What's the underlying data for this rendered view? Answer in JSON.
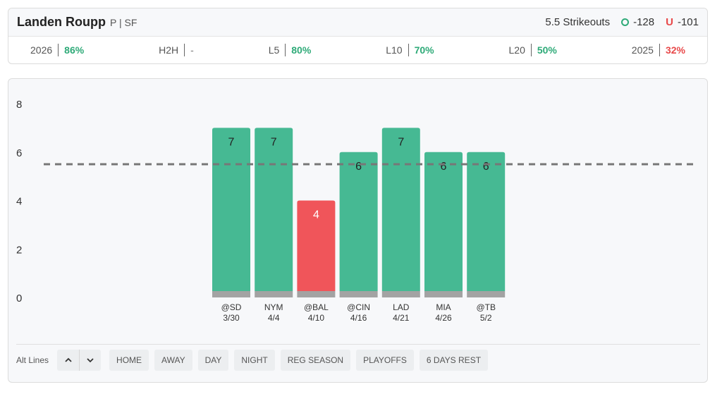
{
  "header": {
    "player_name": "Landen Roupp",
    "player_meta": "P | SF",
    "line_label": "5.5 Strikeouts",
    "over_odds": "-128",
    "under_mark": "U",
    "under_odds": "-101"
  },
  "stats": [
    {
      "label": "2026",
      "value": "86%",
      "tone": "good"
    },
    {
      "label": "H2H",
      "value": "-",
      "tone": "neutral"
    },
    {
      "label": "L5",
      "value": "80%",
      "tone": "good"
    },
    {
      "label": "L10",
      "value": "70%",
      "tone": "good"
    },
    {
      "label": "L20",
      "value": "50%",
      "tone": "good"
    },
    {
      "label": "2025",
      "value": "32%",
      "tone": "bad"
    }
  ],
  "colors": {
    "over": "#46b993",
    "under": "#f0555a",
    "base": "#a3a3a3",
    "line": "#777777"
  },
  "chart_data": {
    "type": "bar",
    "categories": [
      "@SD",
      "NYM",
      "@BAL",
      "@CIN",
      "LAD",
      "MIA",
      "@TB"
    ],
    "dates": [
      "3/30",
      "4/4",
      "4/10",
      "4/16",
      "4/21",
      "4/26",
      "5/2"
    ],
    "values": [
      7,
      7,
      4,
      6,
      7,
      6,
      6
    ],
    "line": 5.5,
    "ylim": [
      0,
      8
    ],
    "yticks": [
      0,
      2,
      4,
      6,
      8
    ],
    "title": "",
    "xlabel": "",
    "ylabel": ""
  },
  "filters": {
    "alt_label": "Alt Lines",
    "alt_up": "▲",
    "alt_down": "▼",
    "buttons": [
      "HOME",
      "AWAY",
      "DAY",
      "NIGHT",
      "REG SEASON",
      "PLAYOFFS",
      "6 DAYS REST"
    ]
  }
}
